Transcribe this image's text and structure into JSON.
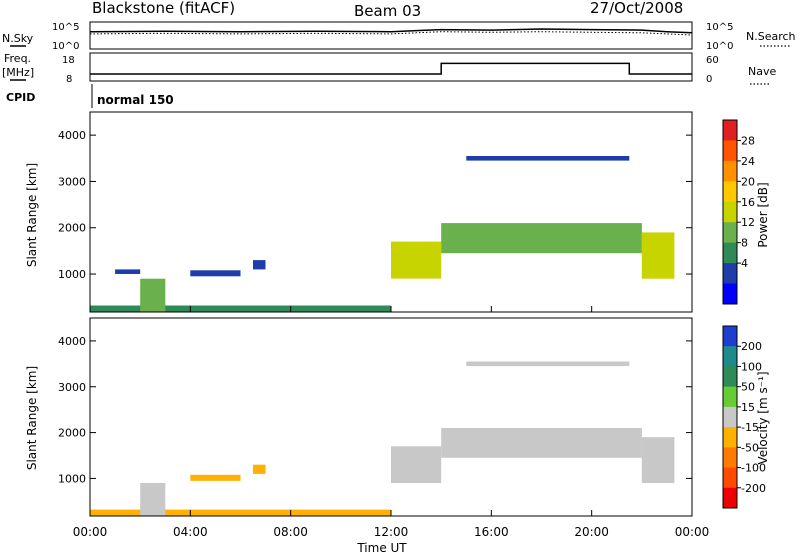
{
  "header": {
    "station": "Blackstone (fitACF)",
    "beam": "Beam 03",
    "date": "27/Oct/2008"
  },
  "labels": {
    "nsky": "N.Sky",
    "nsky_ticks": [
      "10^5",
      "10^0"
    ],
    "nsearch": "N.Search",
    "nsearch_ticks": [
      "10^5",
      "10^0"
    ],
    "freq": "Freq.",
    "freq_unit": "[MHz]",
    "freq_ticks": [
      "18",
      "8"
    ],
    "nave": "Nave",
    "nave_ticks": [
      "60",
      "0"
    ],
    "cpid": "CPID",
    "cpid_value": "normal 150"
  },
  "chart_data": [
    {
      "type": "line",
      "name": "noise-panel",
      "x": [
        0,
        3,
        6,
        9,
        12,
        13,
        14,
        16,
        18,
        20,
        22,
        23,
        24
      ],
      "series": [
        {
          "name": "N.Sky",
          "values": [
            3.2,
            3.3,
            3.2,
            3.3,
            3.2,
            3.4,
            3.6,
            3.5,
            3.7,
            3.6,
            3.5,
            3.2,
            3.0
          ]
        },
        {
          "name": "N.Search",
          "values": [
            2.8,
            2.9,
            2.8,
            2.9,
            2.8,
            3.0,
            3.2,
            3.1,
            3.2,
            3.1,
            3.0,
            2.8,
            2.6
          ]
        }
      ]
    },
    {
      "type": "line",
      "name": "freq-panel",
      "x": [
        0,
        14,
        14,
        21.5,
        21.5,
        24
      ],
      "series": [
        {
          "name": "Freq.",
          "values": [
            10.5,
            10.5,
            14.3,
            14.3,
            10.5,
            10.5
          ]
        }
      ]
    },
    {
      "type": "heatmap",
      "name": "power",
      "xlabel": "Time UT",
      "ylabel": "Slant Range [km]",
      "xlim": [
        0,
        24
      ],
      "ylim": [
        180,
        4500
      ],
      "xticks": [
        "00:00",
        "04:00",
        "08:00",
        "12:00",
        "16:00",
        "20:00",
        "00:00"
      ],
      "yticks": [
        1000,
        2000,
        3000,
        4000
      ],
      "colorbar": {
        "label": "Power [dB]",
        "ticks": [
          "28",
          "24",
          "20",
          "16",
          "12",
          "8",
          "4"
        ],
        "colors": [
          "#e02020",
          "#ff5500",
          "#ff9000",
          "#ffc800",
          "#c8d400",
          "#6ab04c",
          "#2e8b57",
          "#1e3caa",
          "#0000ff"
        ]
      },
      "regions": [
        {
          "t": [
            0.0,
            12.0
          ],
          "r": [
            180,
            320
          ],
          "value": 8
        },
        {
          "t": [
            1.0,
            2.0
          ],
          "r": [
            1000,
            1100
          ],
          "value": 6
        },
        {
          "t": [
            2.0,
            3.0
          ],
          "r": [
            180,
            900
          ],
          "value": 12
        },
        {
          "t": [
            4.0,
            6.0
          ],
          "r": [
            950,
            1080
          ],
          "value": 7
        },
        {
          "t": [
            6.5,
            7.0
          ],
          "r": [
            1100,
            1300
          ],
          "value": 6
        },
        {
          "t": [
            12.0,
            14.0
          ],
          "r": [
            900,
            1700
          ],
          "value": 16
        },
        {
          "t": [
            14.0,
            22.0
          ],
          "r": [
            1450,
            2100
          ],
          "value": 14
        },
        {
          "t": [
            15.0,
            21.5
          ],
          "r": [
            3450,
            3550
          ],
          "value": 5
        },
        {
          "t": [
            22.0,
            23.3
          ],
          "r": [
            900,
            1900
          ],
          "value": 16
        }
      ]
    },
    {
      "type": "heatmap",
      "name": "velocity",
      "xlabel": "Time UT",
      "ylabel": "Slant Range [km]",
      "xlim": [
        0,
        24
      ],
      "ylim": [
        180,
        4500
      ],
      "xticks": [
        "00:00",
        "04:00",
        "08:00",
        "12:00",
        "16:00",
        "20:00",
        "00:00"
      ],
      "yticks": [
        1000,
        2000,
        3000,
        4000
      ],
      "colorbar": {
        "label": "Velocity [m s⁻¹]",
        "ticks": [
          "200",
          "100",
          "50",
          "15",
          "-15",
          "-50",
          "-100",
          "-200"
        ],
        "colors": [
          "#1c3fd0",
          "#1f8a8a",
          "#2e8b57",
          "#66cc33",
          "#c8c8c8",
          "#ffb000",
          "#ff7a00",
          "#ff4a00",
          "#ee0000"
        ]
      },
      "regions": [
        {
          "t": [
            0.0,
            12.0
          ],
          "r": [
            180,
            320
          ],
          "value": -40
        },
        {
          "t": [
            2.0,
            3.0
          ],
          "r": [
            180,
            900
          ],
          "value": 0
        },
        {
          "t": [
            4.0,
            6.0
          ],
          "r": [
            950,
            1080
          ],
          "value": -40
        },
        {
          "t": [
            6.5,
            7.0
          ],
          "r": [
            1100,
            1300
          ],
          "value": -40
        },
        {
          "t": [
            12.0,
            14.0
          ],
          "r": [
            900,
            1700
          ],
          "value": 0
        },
        {
          "t": [
            14.0,
            22.0
          ],
          "r": [
            1450,
            2100
          ],
          "value": 0
        },
        {
          "t": [
            15.0,
            21.5
          ],
          "r": [
            3450,
            3550
          ],
          "value": 0
        },
        {
          "t": [
            22.0,
            23.3
          ],
          "r": [
            900,
            1900
          ],
          "value": 0
        }
      ]
    }
  ]
}
